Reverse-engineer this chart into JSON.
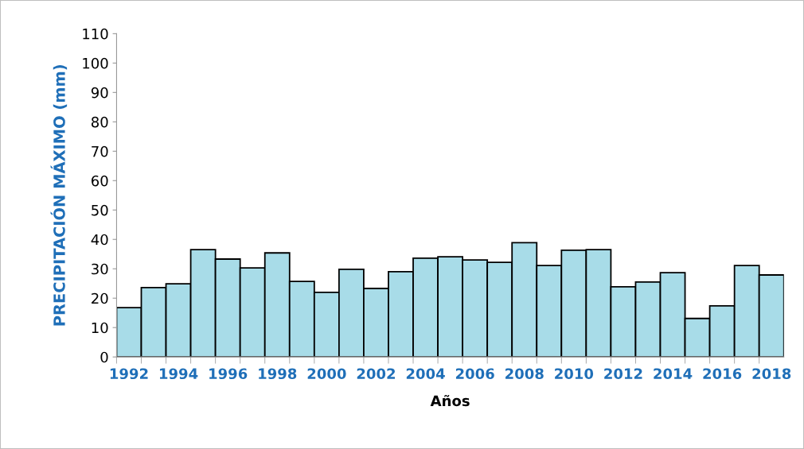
{
  "chart_data": {
    "type": "bar",
    "xlabel": "Años",
    "ylabel": "PRECIPITACIÓN MÁXIMO (mm)",
    "categories": [
      "1992",
      null,
      "1994",
      null,
      "1996",
      null,
      "1998",
      null,
      "2000",
      null,
      "2002",
      null,
      "2004",
      null,
      "2006",
      null,
      "2008",
      null,
      "2010",
      null,
      "2012",
      null,
      "2014",
      null,
      "2016",
      null,
      "2018"
    ],
    "values": [
      16.8,
      23.6,
      24.9,
      36.5,
      33.3,
      30.3,
      35.4,
      25.7,
      22.0,
      29.8,
      23.3,
      29.0,
      33.6,
      34.1,
      33.0,
      32.2,
      38.9,
      31.1,
      36.3,
      36.5,
      23.9,
      25.5,
      28.7,
      13.1,
      17.4,
      31.1,
      27.9
    ],
    "color": "#a8dce8",
    "ylim": [
      0,
      110
    ],
    "yticks": [
      0,
      10,
      20,
      30,
      40,
      50,
      60,
      70,
      80,
      90,
      100,
      110
    ],
    "grid": false,
    "legend": false
  }
}
